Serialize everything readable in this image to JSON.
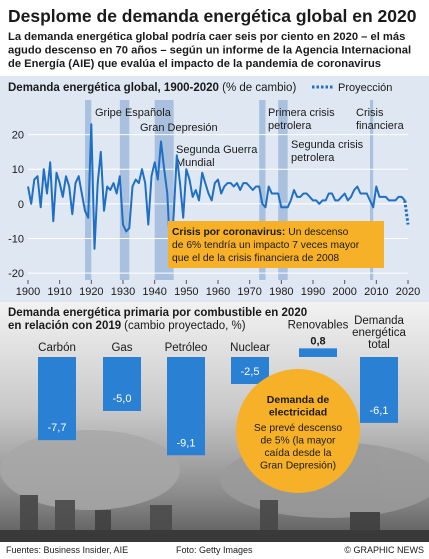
{
  "title": "Desplome de demanda energética global en 2020",
  "subtitle_lines": [
    "La demanda energética global podría caer seis por ciento en 2020 – el más",
    "agudo descenso en 70 años – según un informe de la Agencia Internacional",
    "de Energía (AIE) que evalúa el impacto de la pandemia de coronavirus"
  ],
  "chart_data": [
    {
      "type": "line",
      "title": "Demanda energética global, 1900-2020",
      "unit": "(% de cambio)",
      "x": [
        1900,
        1901,
        1902,
        1903,
        1904,
        1905,
        1906,
        1907,
        1908,
        1909,
        1910,
        1911,
        1912,
        1913,
        1914,
        1915,
        1916,
        1917,
        1918,
        1919,
        1920,
        1921,
        1922,
        1923,
        1924,
        1925,
        1926,
        1927,
        1928,
        1929,
        1930,
        1931,
        1932,
        1933,
        1934,
        1935,
        1936,
        1937,
        1938,
        1939,
        1940,
        1941,
        1942,
        1943,
        1944,
        1945,
        1946,
        1947,
        1948,
        1949,
        1950,
        1951,
        1952,
        1953,
        1954,
        1955,
        1956,
        1957,
        1958,
        1959,
        1960,
        1961,
        1962,
        1963,
        1964,
        1965,
        1966,
        1967,
        1968,
        1969,
        1970,
        1971,
        1972,
        1973,
        1974,
        1975,
        1976,
        1977,
        1978,
        1979,
        1980,
        1981,
        1982,
        1983,
        1984,
        1985,
        1986,
        1987,
        1988,
        1989,
        1990,
        1991,
        1992,
        1993,
        1994,
        1995,
        1996,
        1997,
        1998,
        1999,
        2000,
        2001,
        2002,
        2003,
        2004,
        2005,
        2006,
        2007,
        2008,
        2009,
        2010,
        2011,
        2012,
        2013,
        2014,
        2015,
        2016,
        2017,
        2018,
        2019
      ],
      "series": [
        {
          "color": "#1f6fc5",
          "values": [
            5,
            0,
            7,
            8,
            -1,
            10,
            3,
            12,
            -5,
            9,
            6,
            2,
            8,
            5,
            -3,
            6,
            8,
            3,
            -2,
            -4,
            23,
            -13,
            6,
            15,
            -2,
            5,
            4,
            6,
            3,
            8,
            -6,
            -8,
            -7,
            5,
            7,
            6,
            10,
            6,
            -6,
            8,
            12,
            7,
            18,
            10,
            3,
            -16,
            -3,
            14,
            6,
            -4,
            10,
            7,
            2,
            4,
            1,
            9,
            6,
            3,
            1,
            6,
            7,
            3,
            5,
            6,
            6,
            5,
            6,
            4,
            6,
            6,
            5,
            4,
            5,
            5,
            0,
            -1,
            5,
            3,
            3,
            3,
            -1,
            -1,
            -1,
            1,
            4,
            2,
            2,
            3,
            3,
            2,
            1,
            1,
            0,
            1,
            1,
            3,
            3,
            1,
            1,
            2,
            3,
            1,
            2,
            4,
            5,
            3,
            3,
            3,
            1,
            -1,
            5,
            2,
            2,
            2,
            1,
            1,
            1,
            2,
            2,
            1
          ]
        },
        {
          "name": "Proyección",
          "color": "#1f6fc5",
          "x": [
            2019,
            2020
          ],
          "values": [
            1,
            -6
          ]
        }
      ],
      "xlim": [
        1900,
        2020
      ],
      "xticks": [
        1900,
        1910,
        1920,
        1930,
        1940,
        1950,
        1960,
        1970,
        1980,
        1990,
        2000,
        2010,
        2020
      ],
      "ylim": [
        -22,
        30
      ],
      "yticks": [
        -20,
        -10,
        0,
        10,
        20
      ],
      "grid": true,
      "periods": [
        {
          "label_lines": [
            "Gripe Española"
          ],
          "start": 1918,
          "end": 1920
        },
        {
          "label_lines": [
            "Gran Depresión"
          ],
          "start": 1929,
          "end": 1932
        },
        {
          "label_lines": [
            "Segunda Guerra",
            "Mundial"
          ],
          "start": 1940,
          "end": 1946
        },
        {
          "label_lines": [
            "Primera crisis",
            "petrolera"
          ],
          "start": 1973,
          "end": 1975
        },
        {
          "label_lines": [
            "Segunda crisis",
            "petrolera"
          ],
          "start": 1979,
          "end": 1982
        },
        {
          "label_lines": [
            "Crisis",
            "financiera"
          ],
          "start": 2008,
          "end": 2009
        }
      ],
      "annotation": {
        "title": "Crisis por coronavirus:",
        "text_lines": [
          "Un descenso",
          "de 6% tendría un impacto 7 veces mayor",
          "que el de la crisis financiera de 2008"
        ]
      }
    },
    {
      "type": "bar",
      "title_lines": [
        "Demanda energética primaria por combustible en 2020",
        "en relación con 2019"
      ],
      "subtitle": "(cambio proyectado, %)",
      "categories": [
        [
          "Carbón"
        ],
        [
          "Gas"
        ],
        [
          "Petróleo"
        ],
        [
          "Nuclear"
        ],
        [
          "Renovables"
        ],
        [
          "Demanda",
          "energética",
          "total"
        ]
      ],
      "values": [
        -7.7,
        -5.0,
        -9.1,
        -2.5,
        0.8,
        -6.1
      ],
      "value_labels": [
        "-7,7",
        "-5,0",
        "-9,1",
        "-2,5",
        "0,8",
        "-6,1"
      ],
      "color": "#2a80d2",
      "ylim": [
        -10,
        1
      ],
      "annotation": {
        "title_lines": [
          "Demanda de",
          "electricidad"
        ],
        "text_lines": [
          "Se prevé descenso",
          "de 5% (la mayor",
          "caída desde la",
          "Gran Depresión)"
        ]
      }
    }
  ],
  "footer": {
    "sources": "Fuentes: Business Insider, AIE",
    "photo": "Foto: Getty Images",
    "credit": "© GRAPHIC NEWS"
  }
}
